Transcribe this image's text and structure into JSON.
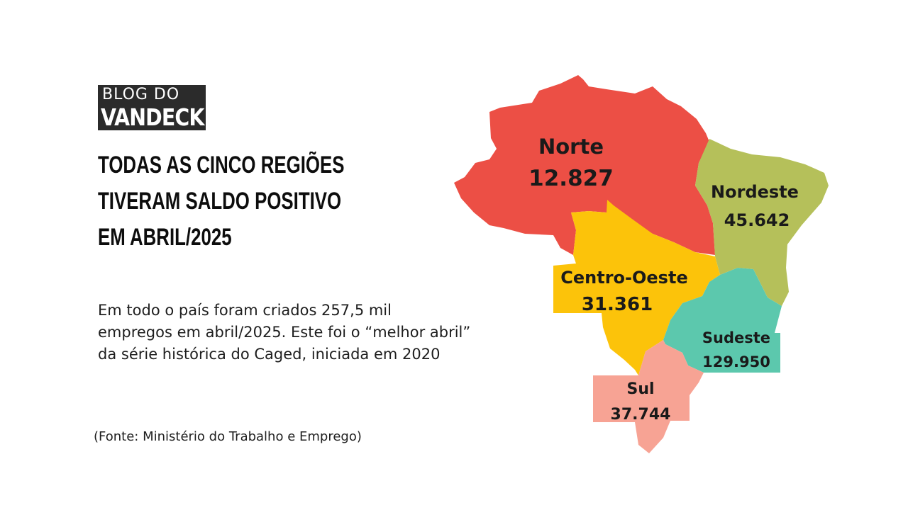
{
  "logo": {
    "line1": "BLOG DO",
    "line2": "VANDECK"
  },
  "headline": [
    "TODAS AS CINCO REGIÕES",
    "TIVERAM SALDO POSITIVO",
    "EM ABRIL/2025"
  ],
  "body": [
    "Em todo o país foram criados 257,5 mil",
    "empregos em abril/2025. Este foi o “melhor abril”",
    "da série histórica do Caged, iniciada em 2020"
  ],
  "source": "(Fonte: Ministério do Trabalho e Emprego)",
  "map": {
    "regions": [
      {
        "id": "norte",
        "name": "Norte",
        "value": "12.827",
        "color": "#ec4f45"
      },
      {
        "id": "nordeste",
        "name": "Nordeste",
        "value": "45.642",
        "color": "#b5c05a"
      },
      {
        "id": "centro-oeste",
        "name": "Centro-Oeste",
        "value": "31.361",
        "color": "#fcc30a"
      },
      {
        "id": "sudeste",
        "name": "Sudeste",
        "value": "129.950",
        "color": "#5cc8ad"
      },
      {
        "id": "sul",
        "name": "Sul",
        "value": "37.744",
        "color": "#f7a394"
      }
    ]
  }
}
